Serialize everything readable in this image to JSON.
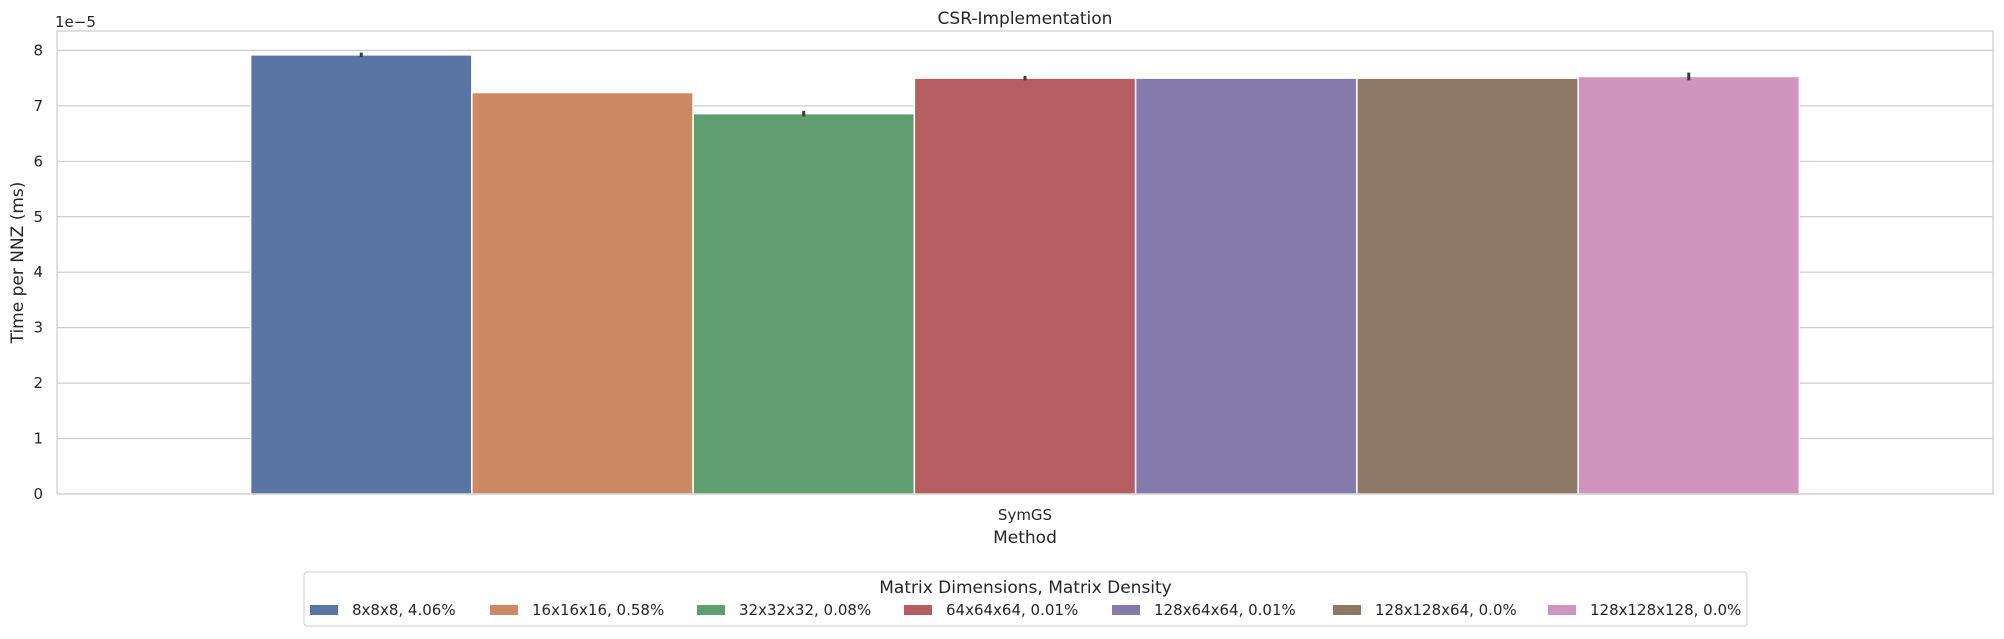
{
  "chart_data": {
    "type": "bar",
    "title": "CSR-Implementation",
    "xlabel": "Method",
    "ylabel": "Time per NNZ (ms)",
    "y_scale_label": "1e−5",
    "y_multiplier": 1e-05,
    "categories": [
      "SymGS"
    ],
    "ylim": [
      0,
      8.35
    ],
    "yticks": [
      0,
      1,
      2,
      3,
      4,
      5,
      6,
      7,
      8
    ],
    "grid": "horizontal",
    "legend_position": "bottom-center",
    "legend_title": "Matrix Dimensions, Matrix Density",
    "series": [
      {
        "name": "8x8x8, 4.06%",
        "values": [
          7.92
        ],
        "error": [
          0.04
        ],
        "color": "#5875a4"
      },
      {
        "name": "16x16x16, 0.58%",
        "values": [
          7.24
        ],
        "error": [
          0.0
        ],
        "color": "#cc8963"
      },
      {
        "name": "32x32x32, 0.08%",
        "values": [
          6.86
        ],
        "error": [
          0.05
        ],
        "color": "#5f9e6e"
      },
      {
        "name": "64x64x64, 0.01%",
        "values": [
          7.5
        ],
        "error": [
          0.04
        ],
        "color": "#b55d60"
      },
      {
        "name": "128x64x64, 0.01%",
        "values": [
          7.5
        ],
        "error": [
          0.0
        ],
        "color": "#857aab"
      },
      {
        "name": "128x128x64, 0.0%",
        "values": [
          7.5
        ],
        "error": [
          0.0
        ],
        "color": "#8d7866"
      },
      {
        "name": "128x128x128, 0.0%",
        "values": [
          7.53
        ],
        "error": [
          0.07
        ],
        "color": "#d095bf"
      }
    ]
  }
}
